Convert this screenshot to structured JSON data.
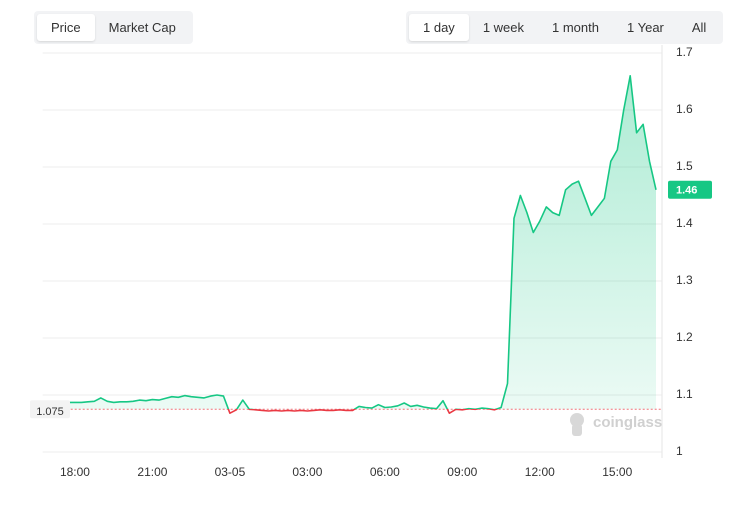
{
  "controls": {
    "metric_tabs": [
      "Price",
      "Market Cap"
    ],
    "range_tabs": [
      "1 day",
      "1 week",
      "1 month",
      "1 Year",
      "All"
    ],
    "watermark": "coinglass"
  },
  "chart_data": {
    "type": "line",
    "categories": [
      null,
      null,
      null,
      null,
      null,
      "18:00",
      null,
      null,
      null,
      null,
      null,
      null,
      null,
      null,
      null,
      null,
      null,
      "21:00",
      null,
      null,
      null,
      null,
      null,
      null,
      null,
      null,
      null,
      null,
      null,
      "03-05",
      null,
      null,
      null,
      null,
      null,
      null,
      null,
      null,
      null,
      null,
      null,
      "03:00",
      null,
      null,
      null,
      null,
      null,
      null,
      null,
      null,
      null,
      null,
      null,
      "06:00",
      null,
      null,
      null,
      null,
      null,
      null,
      null,
      null,
      null,
      null,
      null,
      "09:00",
      null,
      null,
      null,
      null,
      null,
      null,
      null,
      null,
      null,
      null,
      null,
      "12:00",
      null,
      null,
      null,
      null,
      null,
      null,
      null,
      null,
      null,
      null,
      null,
      "15:00",
      null,
      null,
      null,
      null,
      null,
      null
    ],
    "series": [
      {
        "color": "#16c784",
        "values": [
          1.086,
          1.087,
          1.086,
          1.087,
          1.087,
          1.087,
          1.087,
          1.088,
          1.089,
          1.095,
          1.089,
          1.087,
          1.088,
          1.088,
          1.089,
          1.091,
          1.09,
          1.092,
          1.091,
          1.094,
          1.097,
          1.096,
          1.099,
          1.097,
          1.096,
          1.095,
          1.098,
          1.1,
          1.098,
          1.068,
          1.074,
          1.091,
          1.075,
          1.074,
          1.073,
          1.072,
          1.073,
          1.072,
          1.073,
          1.072,
          1.073,
          1.072,
          1.073,
          1.074,
          1.073,
          1.073,
          1.074,
          1.073,
          1.073,
          1.08,
          1.078,
          1.077,
          1.083,
          1.078,
          1.079,
          1.081,
          1.086,
          1.08,
          1.082,
          1.079,
          1.077,
          1.076,
          1.09,
          1.068,
          1.075,
          1.074,
          1.076,
          1.075,
          1.077,
          1.076,
          1.074,
          1.078,
          1.12,
          1.41,
          1.45,
          1.42,
          1.385,
          1.405,
          1.43,
          1.42,
          1.415,
          1.46,
          1.47,
          1.475,
          1.445,
          1.415,
          1.43,
          1.445,
          1.51,
          1.53,
          1.6,
          1.66,
          1.56,
          1.575,
          1.51,
          1.46
        ]
      }
    ],
    "below_color": "#ea3943",
    "baseline": 1.075,
    "ylim": [
      1,
      1.7
    ],
    "yticks": [
      1,
      1.1,
      1.2,
      1.3,
      1.4,
      1.5,
      1.6,
      1.7
    ],
    "grid": true
  }
}
